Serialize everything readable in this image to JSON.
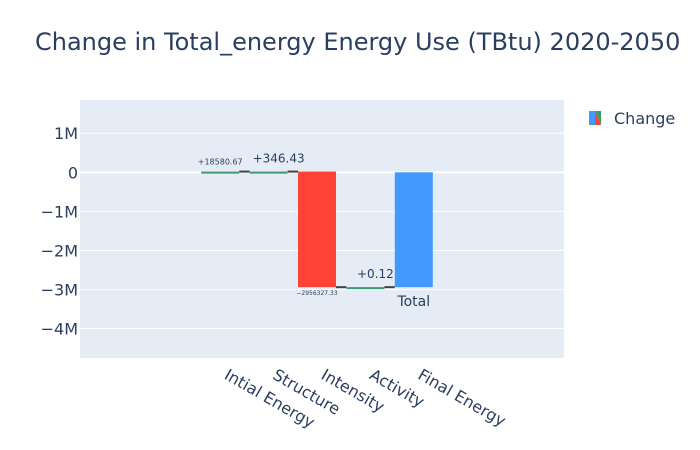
{
  "chart_data": {
    "type": "waterfall",
    "title": "Change in Total_energy Energy Use (TBtu) 2020-2050",
    "categories": [
      "Intial Energy",
      "Structure",
      "Intensity",
      "Activity",
      "Final Energy"
    ],
    "measures": [
      "relative",
      "relative",
      "relative",
      "relative",
      "total"
    ],
    "values": [
      18580.67,
      346.43,
      -2956327.33,
      0.12,
      -2937400.11
    ],
    "data_labels": [
      "+18580.67",
      "+346.43",
      "−2956327.33",
      "+0.12",
      "Total"
    ],
    "ylim": [
      -4750000,
      1850000
    ],
    "yticks": [
      1000000,
      0,
      -1000000,
      -2000000,
      -3000000,
      -4000000
    ],
    "ytick_labels": [
      "1M",
      "0",
      "−1M",
      "−2M",
      "−3M",
      "−4M"
    ],
    "legend": {
      "label": "Change",
      "position": "top-right"
    },
    "grid": true,
    "colors": {
      "increasing": "#3d9970",
      "decreasing": "#ff4136",
      "total": "#4499ff",
      "plot_bg": "#e5ecf6",
      "text": "#2a3f5f"
    }
  }
}
